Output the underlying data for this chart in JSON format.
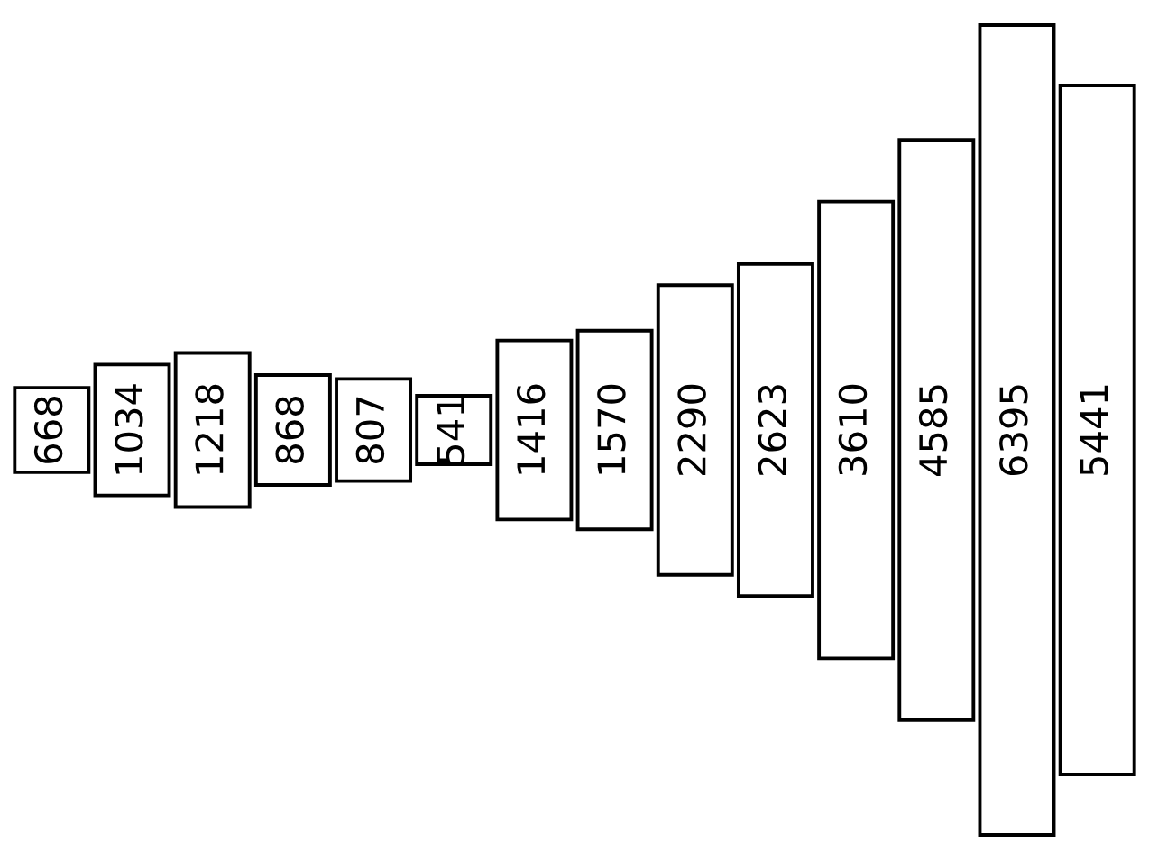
{
  "chart_data": {
    "type": "other",
    "categories": [
      null,
      null,
      null,
      null,
      null,
      null,
      null,
      null,
      null,
      null,
      null,
      null,
      null,
      null
    ],
    "values": [
      668,
      1034,
      1218,
      868,
      807,
      541,
      1416,
      1570,
      2290,
      2623,
      3610,
      4585,
      6395,
      5441
    ],
    "color": "#ffffff",
    "data_labels": true
  }
}
